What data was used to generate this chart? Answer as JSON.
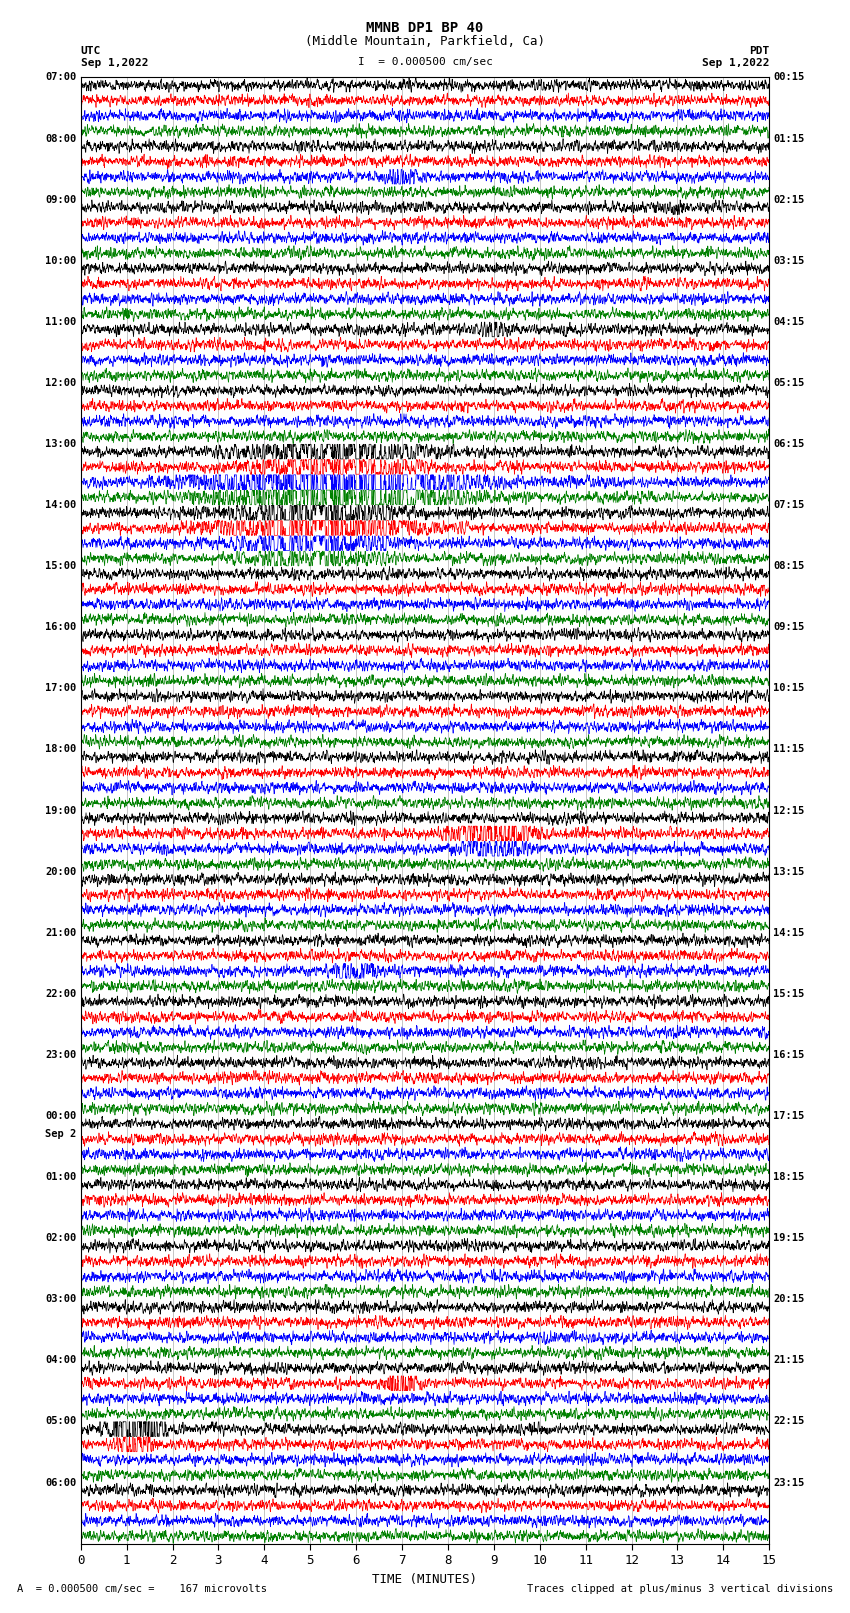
{
  "title_line1": "MMNB DP1 BP 40",
  "title_line2": "(Middle Mountain, Parkfield, Ca)",
  "scale_text": "I  = 0.000500 cm/sec",
  "utc_label": "UTC",
  "pdt_label": "PDT",
  "date_left": "Sep 1,2022",
  "date_right": "Sep 1,2022",
  "xlabel": "TIME (MINUTES)",
  "footer_left": "A  = 0.000500 cm/sec =    167 microvolts",
  "footer_right": "Traces clipped at plus/minus 3 vertical divisions",
  "bg_color": "#ffffff",
  "trace_colors": [
    "black",
    "red",
    "blue",
    "green"
  ],
  "xlim": [
    0,
    15
  ],
  "xticks": [
    0,
    1,
    2,
    3,
    4,
    5,
    6,
    7,
    8,
    9,
    10,
    11,
    12,
    13,
    14,
    15
  ],
  "left_times_utc": [
    "07:00",
    "08:00",
    "09:00",
    "10:00",
    "11:00",
    "12:00",
    "13:00",
    "14:00",
    "15:00",
    "16:00",
    "17:00",
    "18:00",
    "19:00",
    "20:00",
    "21:00",
    "22:00",
    "23:00",
    "00:00",
    "01:00",
    "02:00",
    "03:00",
    "04:00",
    "05:00",
    "06:00"
  ],
  "right_times_pdt": [
    "00:15",
    "01:15",
    "02:15",
    "03:15",
    "04:15",
    "05:15",
    "06:15",
    "07:15",
    "08:15",
    "09:15",
    "10:15",
    "11:15",
    "12:15",
    "13:15",
    "14:15",
    "15:15",
    "16:15",
    "17:15",
    "18:15",
    "19:15",
    "20:15",
    "21:15",
    "22:15",
    "23:15"
  ],
  "sep2_group": 17,
  "num_groups": 24,
  "traces_per_group": 4,
  "vline_color": "#888888",
  "vline_lw": 0.5
}
